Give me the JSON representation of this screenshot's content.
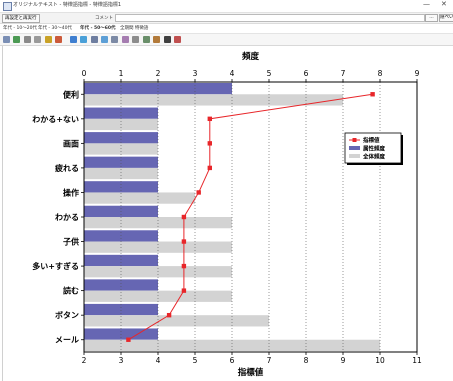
{
  "window": {
    "title": "オリジナルテキスト - 特徴語指標 - 特徴語指標1",
    "minimize": "—",
    "close": "✕"
  },
  "controls": {
    "recalc_button": "再設定と再実行",
    "comment_label": "コメント",
    "comment_value": "",
    "more_button": "…",
    "pin_button": "隠ぺいす"
  },
  "tabs": [
    {
      "label": "年代 - 10～20代"
    },
    {
      "label": "年代 - 30～40代"
    },
    {
      "label": "年代 - 50～60代"
    },
    {
      "label": "全期間 特徴語"
    }
  ],
  "toolbar": {
    "icons": [
      "grid-icon",
      "refresh-icon",
      "zoom-icon",
      "settings-icon",
      "lock-icon",
      "chart-icon",
      "bar-chart-icon",
      "target-icon",
      "list-icon",
      "chart-icon-2",
      "table-icon",
      "text-icon",
      "sort-icon",
      "view-icon",
      "palette-icon",
      "globe-icon",
      "search-icon"
    ]
  },
  "chart_data": {
    "type": "bar",
    "categories": [
      "便利",
      "わかる+ない",
      "画面",
      "疲れる",
      "操作",
      "わかる",
      "子供",
      "多い+すぎる",
      "読む",
      "ボタン",
      "メール"
    ],
    "top_axis": {
      "title": "頻度",
      "range": [
        0,
        9
      ],
      "ticks": [
        0,
        1,
        2,
        3,
        4,
        5,
        6,
        7,
        8,
        9
      ]
    },
    "bottom_axis": {
      "title": "指標値",
      "range": [
        2,
        11
      ],
      "ticks": [
        2,
        3,
        4,
        5,
        6,
        7,
        8,
        9,
        10,
        11
      ]
    },
    "series": [
      {
        "name": "属性頻度",
        "axis": "top",
        "color": "#6666b3",
        "values": [
          4,
          2,
          2,
          2,
          2,
          2,
          2,
          2,
          2,
          2,
          2
        ]
      },
      {
        "name": "全体頻度",
        "axis": "top",
        "color": "#d3d3d3",
        "values": [
          7,
          2,
          2,
          2,
          3,
          4,
          4,
          4,
          4,
          5,
          8
        ]
      },
      {
        "name": "指標値",
        "axis": "bottom",
        "color": "#e8262a",
        "values": [
          9.8,
          5.4,
          5.4,
          5.4,
          5.1,
          4.7,
          4.7,
          4.7,
          4.7,
          4.3,
          3.2
        ]
      }
    ],
    "legend": {
      "position": "right",
      "items": [
        {
          "label": "指標値",
          "color": "#e8262a"
        },
        {
          "label": "属性頻度",
          "color": "#6666b3"
        },
        {
          "label": "全体頻度",
          "color": "#d3d3d3"
        }
      ]
    },
    "grid": true
  }
}
